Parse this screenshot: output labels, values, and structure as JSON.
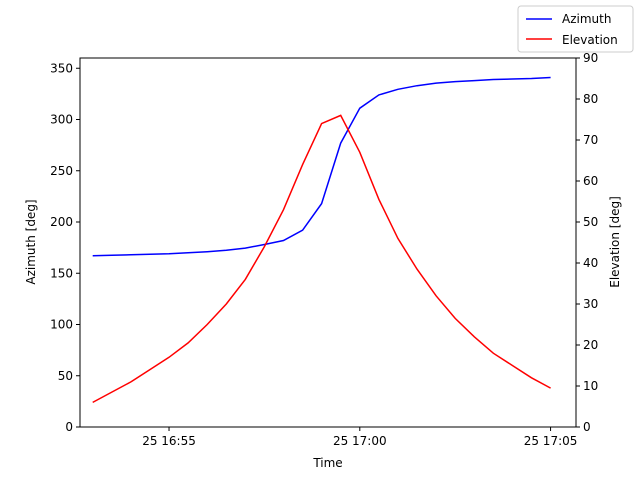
{
  "chart_data": {
    "type": "line",
    "xlabel": "Time",
    "ylabel_left": "Azimuth [deg]",
    "ylabel_right": "Elevation [deg]",
    "xlim": [
      "25 16:52:40",
      "25 17:05:40"
    ],
    "ylim_left": [
      0,
      360
    ],
    "ylim_right": [
      0,
      90
    ],
    "x_ticks": [
      {
        "time": "25 16:55:00",
        "label": "25 16:55"
      },
      {
        "time": "25 17:00:00",
        "label": "25 17:00"
      },
      {
        "time": "25 17:05:00",
        "label": "25 17:05"
      }
    ],
    "y_ticks_left": [
      "0",
      "50",
      "100",
      "150",
      "200",
      "250",
      "300",
      "350"
    ],
    "y_ticks_right": [
      "0",
      "10",
      "20",
      "30",
      "40",
      "50",
      "60",
      "70",
      "80",
      "90"
    ],
    "legend_position": "top-right",
    "grid": false,
    "x": [
      "25 16:53:00",
      "25 16:53:30",
      "25 16:54:00",
      "25 16:54:30",
      "25 16:55:00",
      "25 16:55:30",
      "25 16:56:00",
      "25 16:56:30",
      "25 16:57:00",
      "25 16:57:30",
      "25 16:58:00",
      "25 16:58:30",
      "25 16:59:00",
      "25 16:59:30",
      "25 17:00:00",
      "25 17:00:30",
      "25 17:01:00",
      "25 17:01:30",
      "25 17:02:00",
      "25 17:02:30",
      "25 17:03:00",
      "25 17:03:30",
      "25 17:04:00",
      "25 17:04:30",
      "25 17:05:00"
    ],
    "series": [
      {
        "name": "Azimuth",
        "axis": "left",
        "color": "#0000ff",
        "values": [
          167,
          167.5,
          168,
          168.5,
          169,
          170,
          171,
          172.5,
          174.5,
          178,
          182,
          192,
          218,
          277,
          311,
          324,
          329.5,
          333,
          335.5,
          337,
          338,
          339,
          339.5,
          340,
          341
        ]
      },
      {
        "name": "Elevation",
        "axis": "right",
        "color": "#ff0000",
        "values": [
          6,
          8.5,
          11,
          14,
          17,
          20.5,
          25,
          30,
          36,
          44,
          53,
          64,
          74,
          76,
          67,
          55.5,
          46,
          38.5,
          32,
          26.5,
          22,
          18,
          15,
          12,
          9.5
        ]
      }
    ]
  }
}
